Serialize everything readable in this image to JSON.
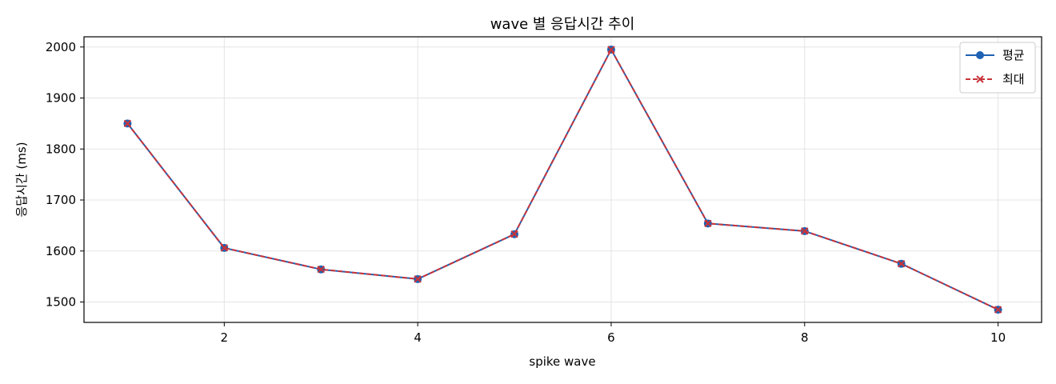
{
  "chart_data": {
    "type": "line",
    "title": "wave 별 응답시간 추이",
    "xlabel": "spike wave",
    "ylabel": "응답시간 (ms)",
    "xlim": [
      0.55,
      10.45
    ],
    "ylim": [
      1460,
      2020
    ],
    "xticks": [
      2,
      4,
      6,
      8,
      10
    ],
    "yticks": [
      1500,
      1600,
      1700,
      1800,
      1900,
      2000
    ],
    "grid": true,
    "legend_position": "top-right",
    "x": [
      1,
      2,
      3,
      4,
      5,
      6,
      7,
      8,
      9,
      10
    ],
    "series": [
      {
        "name": "평균",
        "color": "#1f62b4",
        "marker": "circle",
        "line_style": "solid",
        "values": [
          1850,
          1606,
          1564,
          1545,
          1633,
          1995,
          1654,
          1639,
          1575,
          1485
        ]
      },
      {
        "name": "최대",
        "color": "#c7343a",
        "marker": "x",
        "line_style": "dashed",
        "values": [
          1850,
          1606,
          1564,
          1545,
          1633,
          1995,
          1654,
          1639,
          1575,
          1485
        ]
      }
    ]
  }
}
